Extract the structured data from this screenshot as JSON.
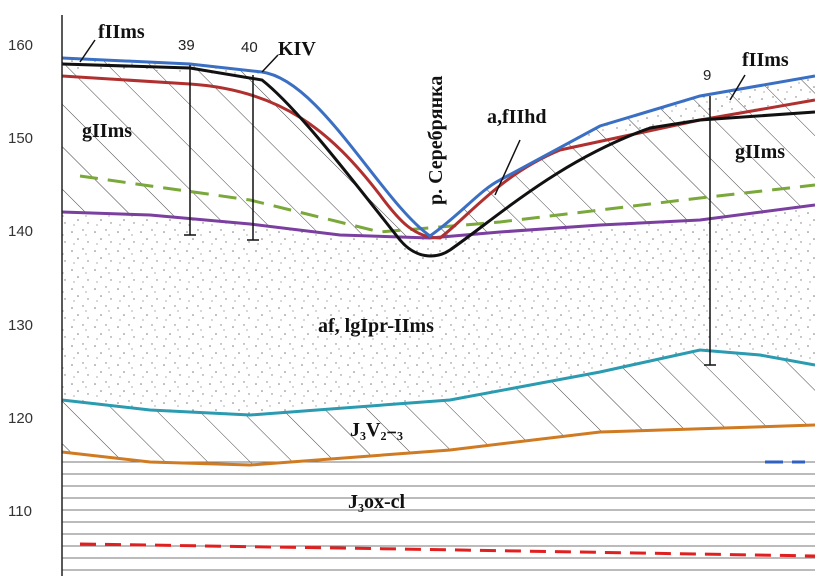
{
  "axis": {
    "ticks": [
      "160",
      "150",
      "140",
      "130",
      "120",
      "110"
    ]
  },
  "wells": [
    {
      "label": "39"
    },
    {
      "label": "40"
    },
    {
      "label": "9"
    }
  ],
  "labels": {
    "fIIms_left": "fIIms",
    "kiv": "KIV",
    "river": "р. Серебрянка",
    "afIIhd": "a,fIIhd",
    "fIIms_right": "fIIms",
    "gIIms_left": "gIIms",
    "gIIms_right": "gIIms",
    "af": "af, lgIpr-IIms",
    "j3v": "J₃V₂₋₃",
    "j3ox": "J₃ox-cl"
  }
}
